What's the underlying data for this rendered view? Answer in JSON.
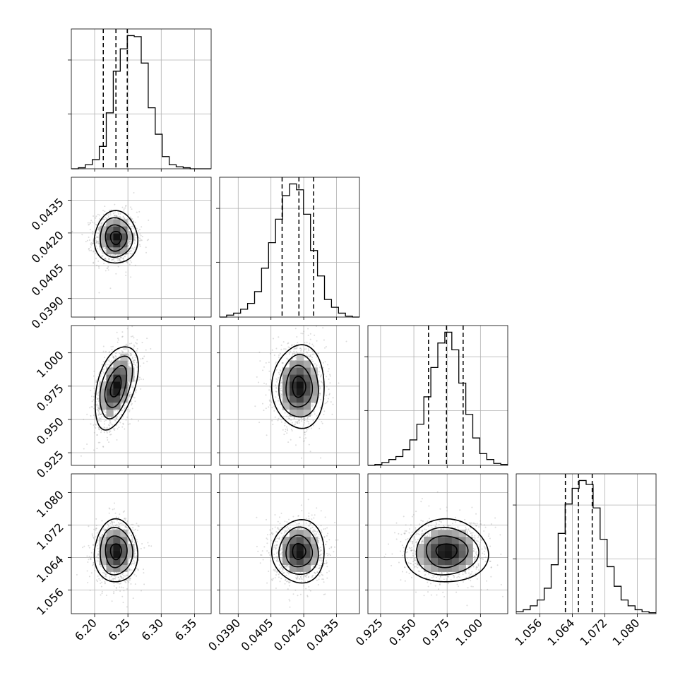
{
  "chart_data": {
    "type": "corner",
    "grid": true,
    "n_params": 4,
    "params": [
      {
        "range": [
          6.165,
          6.375
        ],
        "ticks": [
          6.2,
          6.25,
          6.3,
          6.35
        ],
        "tick_labels": [
          "6.20",
          "6.25",
          "6.30",
          "6.35"
        ],
        "quantiles": [
          6.213,
          6.232,
          6.249
        ],
        "hist_edges_step": 0.0105,
        "hist_values": [
          0,
          1,
          4,
          9,
          22,
          55,
          96,
          118,
          131,
          130,
          104,
          60,
          34,
          12,
          4,
          2,
          1,
          0,
          0,
          0
        ]
      },
      {
        "range": [
          0.03815,
          0.04455
        ],
        "ticks": [
          0.039,
          0.0405,
          0.042,
          0.0435
        ],
        "tick_labels": [
          "0.0390",
          "0.0405",
          "0.0420",
          "0.0435"
        ],
        "quantiles": [
          0.04101,
          0.04178,
          0.04245
        ],
        "hist_edges_step": 0.00032,
        "hist_values": [
          0,
          2,
          4,
          8,
          14,
          26,
          50,
          76,
          100,
          124,
          136,
          130,
          105,
          68,
          42,
          18,
          10,
          4,
          1,
          0
        ]
      },
      {
        "range": [
          0.9155,
          1.0205
        ],
        "ticks": [
          0.925,
          0.95,
          0.975,
          1.0
        ],
        "tick_labels": [
          "0.925",
          "0.950",
          "0.975",
          "1.000"
        ],
        "quantiles": [
          0.961,
          0.9745,
          0.987
        ],
        "hist_edges_step": 0.00525,
        "hist_values": [
          0,
          1,
          3,
          6,
          9,
          16,
          26,
          42,
          70,
          100,
          125,
          136,
          118,
          84,
          52,
          28,
          12,
          6,
          2,
          1
        ]
      },
      {
        "range": [
          1.0502,
          1.0846
        ],
        "ticks": [
          1.056,
          1.064,
          1.072,
          1.08
        ],
        "tick_labels": [
          "1.056",
          "1.064",
          "1.072",
          "1.080"
        ],
        "quantiles": [
          1.0623,
          1.0655,
          1.0689
        ],
        "hist_edges_step": 0.00172,
        "hist_values": [
          2,
          4,
          8,
          14,
          26,
          50,
          82,
          112,
          128,
          136,
          132,
          108,
          76,
          48,
          28,
          14,
          8,
          4,
          2,
          1
        ]
      }
    ],
    "pairs": [
      {
        "row": 1,
        "col": 0,
        "mean": [
          6.232,
          0.04178
        ],
        "sd": [
          0.013,
          0.00048
        ],
        "corr": 0.0
      },
      {
        "row": 2,
        "col": 0,
        "mean": [
          6.232,
          0.9745
        ],
        "sd": [
          0.013,
          0.0125
        ],
        "corr": 0.45
      },
      {
        "row": 2,
        "col": 1,
        "mean": [
          0.04178,
          0.9745
        ],
        "sd": [
          0.00048,
          0.0125
        ],
        "corr": 0.0
      },
      {
        "row": 3,
        "col": 0,
        "mean": [
          6.232,
          1.0655
        ],
        "sd": [
          0.013,
          0.0031
        ],
        "corr": 0.0
      },
      {
        "row": 3,
        "col": 1,
        "mean": [
          0.04178,
          1.0655
        ],
        "sd": [
          0.00048,
          0.0031
        ],
        "corr": 0.0
      },
      {
        "row": 3,
        "col": 2,
        "mean": [
          0.9745,
          1.0655
        ],
        "sd": [
          0.0125,
          0.0031
        ],
        "corr": 0.0
      }
    ],
    "contour_levels_sigma": [
      0.5,
      1.0,
      1.5,
      2.0
    ]
  }
}
